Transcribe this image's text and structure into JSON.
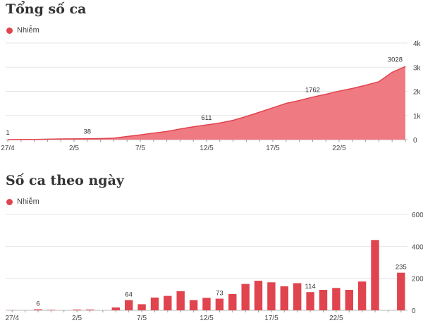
{
  "colors": {
    "accent": "#e0444e",
    "area_fill": "#f07a82",
    "grid": "#e6e6e6"
  },
  "icons": {
    "legend_marker": "filled-circle"
  },
  "chart_data": [
    {
      "type": "area",
      "title": "Tổng số ca",
      "legend": [
        "Nhiễm"
      ],
      "legend_position": "top-left",
      "grid": true,
      "ylim": [
        0,
        4000
      ],
      "yticks": [
        0,
        1000,
        2000,
        3000,
        4000
      ],
      "ytick_labels": [
        "0",
        "1k",
        "2k",
        "3k",
        "4k"
      ],
      "xtick_labels": [
        "27/4",
        "2/5",
        "7/5",
        "12/5",
        "17/5",
        "22/5"
      ],
      "x": [
        "27/4",
        "28/4",
        "29/4",
        "30/4",
        "1/5",
        "2/5",
        "3/5",
        "4/5",
        "5/5",
        "6/5",
        "7/5",
        "8/5",
        "9/5",
        "10/5",
        "11/5",
        "12/5",
        "13/5",
        "14/5",
        "15/5",
        "16/5",
        "17/5",
        "18/5",
        "19/5",
        "20/5",
        "21/5",
        "22/5",
        "23/5",
        "24/5",
        "25/5",
        "26/5",
        "27/5"
      ],
      "series": [
        {
          "name": "Nhiễm",
          "values": [
            1,
            7,
            10,
            18,
            28,
            33,
            38,
            45,
            60,
            130,
            200,
            270,
            340,
            440,
            530,
            611,
            690,
            800,
            960,
            1140,
            1320,
            1500,
            1620,
            1762,
            1880,
            2010,
            2120,
            2250,
            2400,
            2789,
            3028
          ]
        }
      ],
      "data_labels": [
        {
          "x": "27/4",
          "label": "1"
        },
        {
          "x": "3/5",
          "label": "38"
        },
        {
          "x": "12/5",
          "label": "611"
        },
        {
          "x": "20/5",
          "label": "1762"
        },
        {
          "x": "27/5",
          "label": "3028"
        }
      ]
    },
    {
      "type": "bar",
      "title": "Số ca theo ngày",
      "legend": [
        "Nhiễm"
      ],
      "legend_position": "top-left",
      "grid": true,
      "ylim": [
        0,
        600
      ],
      "yticks": [
        0,
        200,
        400,
        600
      ],
      "ytick_labels": [
        "0",
        "200",
        "400",
        "600"
      ],
      "xtick_labels": [
        "27/4",
        "2/5",
        "7/5",
        "12/5",
        "17/5",
        "22/5"
      ],
      "categories": [
        "27/4",
        "28/4",
        "29/4",
        "30/4",
        "1/5",
        "2/5",
        "3/5",
        "4/5",
        "5/5",
        "6/5",
        "7/5",
        "8/5",
        "9/5",
        "10/5",
        "11/5",
        "12/5",
        "13/5",
        "14/5",
        "15/5",
        "16/5",
        "17/5",
        "18/5",
        "19/5",
        "20/5",
        "21/5",
        "22/5",
        "23/5",
        "24/5",
        "25/5",
        "26/5",
        "27/5"
      ],
      "series": [
        {
          "name": "Nhiễm",
          "values": [
            1,
            0,
            6,
            3,
            0,
            5,
            5,
            0,
            18,
            64,
            38,
            80,
            90,
            120,
            64,
            78,
            73,
            102,
            165,
            185,
            175,
            150,
            170,
            114,
            128,
            140,
            128,
            180,
            440,
            0,
            235
          ]
        }
      ],
      "data_labels": [
        {
          "x": "29/4",
          "label": "6"
        },
        {
          "x": "6/5",
          "label": "64"
        },
        {
          "x": "13/5",
          "label": "73"
        },
        {
          "x": "20/5",
          "label": "114"
        },
        {
          "x": "27/5",
          "label": "235"
        }
      ]
    }
  ]
}
